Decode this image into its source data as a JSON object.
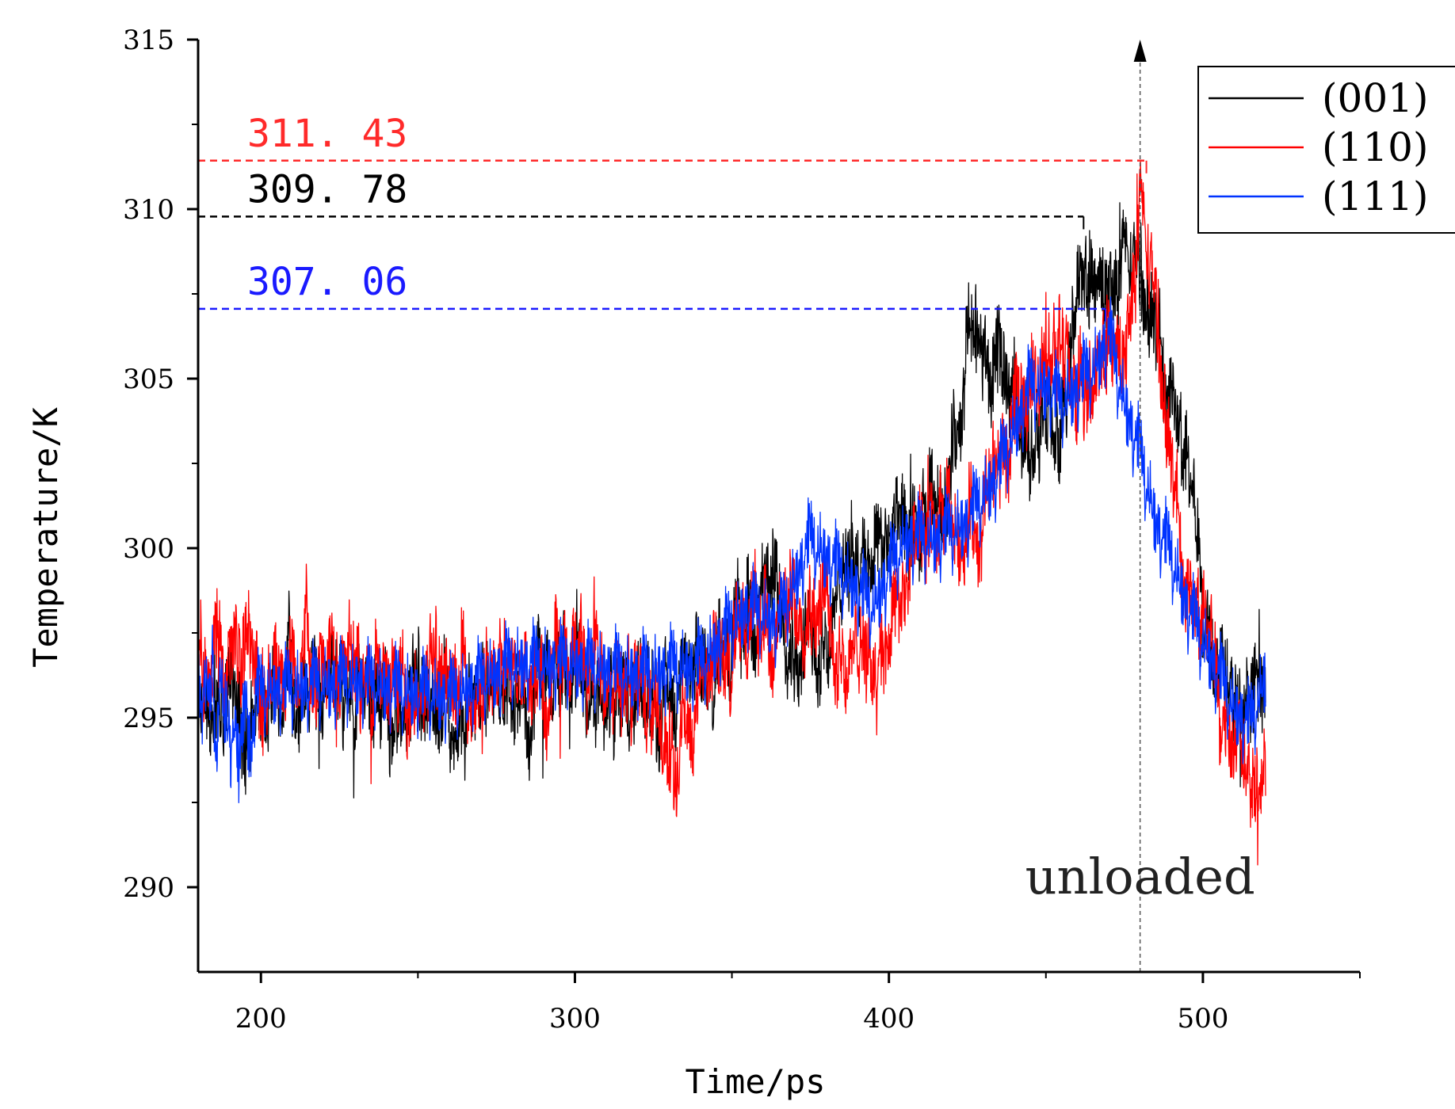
{
  "chart_data": {
    "type": "line",
    "title": "",
    "xlabel": "Time/ps",
    "ylabel": "Temperature/K",
    "xlim": [
      180,
      550
    ],
    "ylim": [
      287.5,
      315
    ],
    "x_ticks": [
      200,
      300,
      400,
      500
    ],
    "x_minor_ticks": [
      250,
      350,
      450,
      550
    ],
    "y_ticks": [
      290,
      295,
      300,
      305,
      310,
      315
    ],
    "y_minor_ticks": [
      292.5,
      297.5,
      302.5,
      307.5,
      312.5
    ],
    "grid": false,
    "legend_position": "top-right",
    "series": [
      {
        "name": "(001)",
        "color": "#000000",
        "noise": 1.1,
        "x": [
          180,
          200,
          230,
          260,
          280,
          300,
          320,
          340,
          355,
          365,
          372,
          380,
          390,
          400,
          410,
          420,
          425,
          430,
          440,
          445,
          450,
          455,
          460,
          465,
          470,
          475,
          480,
          485,
          490,
          495,
          500,
          505,
          510,
          515,
          520
        ],
        "y": [
          295.2,
          295.8,
          296.0,
          295.2,
          295.7,
          296.0,
          295.4,
          296.2,
          298.0,
          298.8,
          297.0,
          297.5,
          300.0,
          300.5,
          300.0,
          302.5,
          306.2,
          305.5,
          304.5,
          303.0,
          303.5,
          302.8,
          307.5,
          307.8,
          307.6,
          308.0,
          308.0,
          306.0,
          304.8,
          302.0,
          299.0,
          297.0,
          296.5,
          296.0,
          295.5
        ]
      },
      {
        "name": "(110)",
        "color": "#ff0000",
        "noise": 1.1,
        "x": [
          180,
          200,
          230,
          260,
          280,
          300,
          320,
          330,
          340,
          355,
          365,
          375,
          385,
          395,
          400,
          410,
          420,
          430,
          440,
          445,
          450,
          455,
          460,
          465,
          470,
          475,
          480,
          485,
          490,
          495,
          500,
          505,
          510,
          515,
          520
        ],
        "y": [
          296.8,
          296.8,
          296.5,
          296.0,
          296.2,
          296.5,
          296.0,
          294.0,
          295.5,
          298.0,
          297.5,
          299.0,
          297.0,
          296.5,
          298.0,
          300.0,
          300.5,
          301.0,
          303.5,
          304.5,
          306.0,
          305.5,
          304.0,
          304.5,
          306.0,
          305.5,
          309.5,
          307.0,
          302.0,
          299.0,
          297.5,
          296.0,
          295.0,
          294.0,
          294.0
        ]
      },
      {
        "name": "(111)",
        "color": "#0033ff",
        "noise": 1.0,
        "x": [
          180,
          200,
          230,
          260,
          280,
          300,
          320,
          340,
          355,
          365,
          375,
          385,
          395,
          405,
          415,
          425,
          435,
          445,
          450,
          455,
          460,
          465,
          470,
          475,
          480,
          485,
          490,
          495,
          500,
          505,
          510,
          515,
          520
        ],
        "y": [
          295.5,
          295.0,
          295.3,
          294.8,
          295.8,
          295.8,
          295.5,
          295.8,
          297.5,
          297.0,
          299.5,
          298.5,
          297.5,
          299.5,
          299.5,
          300.0,
          301.5,
          304.0,
          304.0,
          303.5,
          304.0,
          304.5,
          305.5,
          303.5,
          302.0,
          300.0,
          299.0,
          297.5,
          296.5,
          295.5,
          294.5,
          294.0,
          295.5
        ]
      }
    ],
    "reference_lines": [
      {
        "value": 311.43,
        "label": "311. 43",
        "color": "#ff2a2a",
        "x_end": 482
      },
      {
        "value": 309.78,
        "label": "309. 78",
        "color": "#000000",
        "x_end": 462
      },
      {
        "value": 307.06,
        "label": "307. 06",
        "color": "#1a1aff",
        "x_end": 469
      }
    ],
    "vertical_marker": {
      "x": 480,
      "label": "unloaded",
      "color": "#555555"
    }
  }
}
